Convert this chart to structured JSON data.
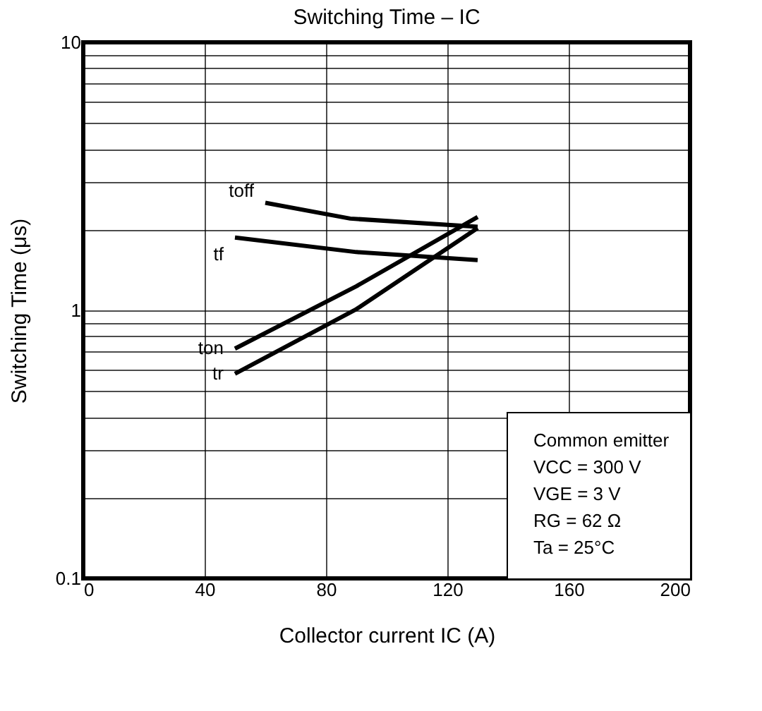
{
  "chart_data": {
    "type": "line",
    "title": "Switching Time – IC",
    "xlabel": "Collector current IC (A)",
    "ylabel": "Switching Time (μs)",
    "log": "y",
    "xlim": [
      0,
      200
    ],
    "xticks": [
      0,
      40,
      80,
      120,
      160,
      200
    ],
    "ylim": [
      0.1,
      10
    ],
    "yticks": [
      0.1,
      {
        "value": 0.2,
        "label": null
      },
      {
        "value": 0.3,
        "label": null
      },
      {
        "value": 0.4,
        "label": null
      },
      {
        "value": 0.5,
        "label": null
      },
      {
        "value": 0.6,
        "label": null
      },
      {
        "value": 0.7,
        "label": null
      },
      {
        "value": 0.8,
        "label": null
      },
      {
        "value": 0.9,
        "label": null
      },
      1,
      {
        "value": 2,
        "label": null
      },
      {
        "value": 3,
        "label": null
      },
      {
        "value": 4,
        "label": null
      },
      {
        "value": 5,
        "label": null
      },
      {
        "value": 6,
        "label": null
      },
      {
        "value": 7,
        "label": null
      },
      {
        "value": 8,
        "label": null
      },
      {
        "value": 9,
        "label": null
      },
      10
    ],
    "grid": true,
    "line_style": "solid",
    "marker": "none",
    "series": [
      {
        "name": "toff",
        "color": "#000000",
        "x": [
          60,
          88,
          130
        ],
        "values": [
          2.52,
          2.2,
          2.05
        ]
      },
      {
        "name": "tf",
        "color": "#000000",
        "x": [
          50,
          90,
          130
        ],
        "values": [
          1.87,
          1.65,
          1.54
        ]
      },
      {
        "name": "ton",
        "color": "#000000",
        "x": [
          50,
          90,
          130
        ],
        "values": [
          0.72,
          1.23,
          2.23
        ]
      },
      {
        "name": "tr",
        "color": "#000000",
        "x": [
          50,
          90,
          130
        ],
        "values": [
          0.58,
          1.01,
          2.03
        ]
      }
    ],
    "annotations": [
      "Common emitter",
      "VCC = 300 V",
      "VGE = 3 V",
      "RG = 62 Ω",
      "Ta = 25°C"
    ]
  }
}
